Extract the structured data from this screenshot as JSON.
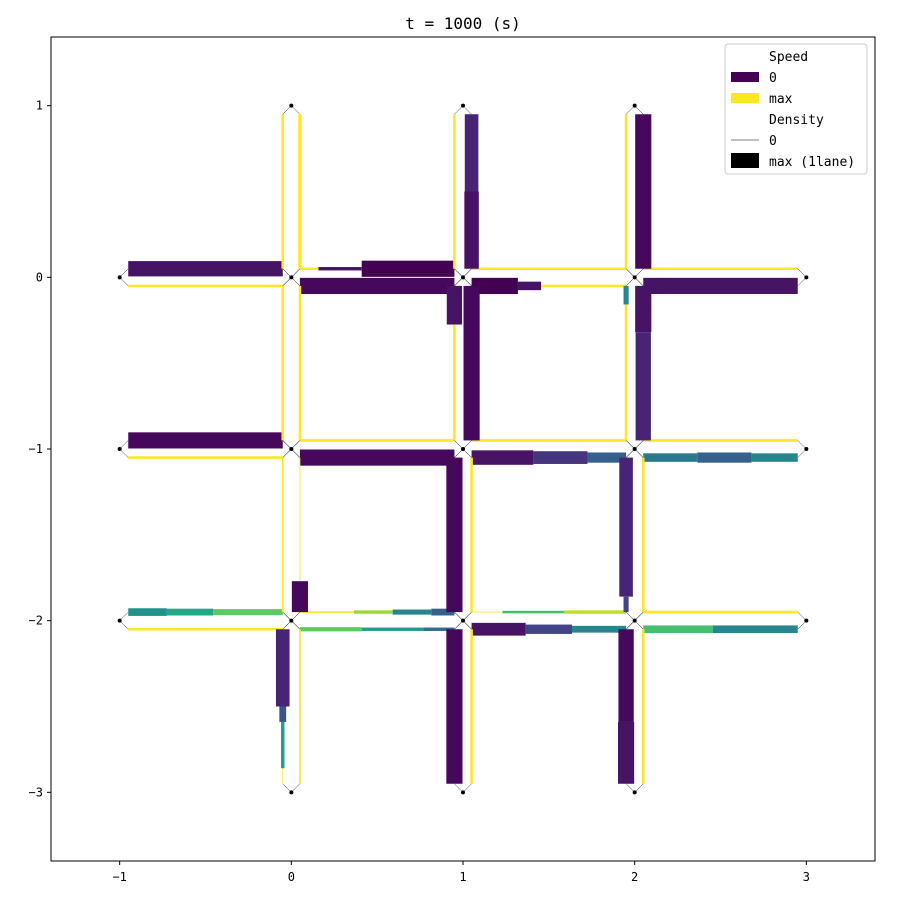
{
  "chart_data": {
    "type": "other",
    "title": "t =     1000 (s)",
    "xlim": [
      -1.4,
      3.4
    ],
    "ylim": [
      -3.4,
      1.4
    ],
    "x_ticks": [
      -1,
      0,
      1,
      2,
      3
    ],
    "y_ticks": [
      1,
      0,
      -1,
      -2,
      -3
    ],
    "x_tick_labels": [
      "−1",
      "0",
      "1",
      "2",
      "3"
    ],
    "y_tick_labels": [
      "1",
      "0",
      "−1",
      "−2",
      "−3"
    ],
    "grid": false,
    "legend": {
      "placement": "top-right",
      "speed_title": "Speed",
      "speed_zero": "0",
      "speed_max": "max",
      "density_title": "Density",
      "density_zero": "0",
      "density_max": "max (1lane)",
      "speed_zero_color": "#440154",
      "speed_max_color": "#fde725",
      "density_color": "#000000"
    },
    "nodes": [
      [
        0,
        1
      ],
      [
        1,
        1
      ],
      [
        2,
        1
      ],
      [
        -1,
        0
      ],
      [
        0,
        0
      ],
      [
        1,
        0
      ],
      [
        2,
        0
      ],
      [
        3,
        0
      ],
      [
        -1,
        -1
      ],
      [
        0,
        -1
      ],
      [
        1,
        -1
      ],
      [
        2,
        -1
      ],
      [
        3,
        -1
      ],
      [
        -1,
        -2
      ],
      [
        0,
        -2
      ],
      [
        1,
        -2
      ],
      [
        2,
        -2
      ],
      [
        3,
        -2
      ],
      [
        0,
        -3
      ],
      [
        1,
        -3
      ],
      [
        2,
        -3
      ]
    ],
    "links": [
      {
        "axis": "h",
        "y": 0.05,
        "x0": -0.95,
        "x1": -0.05,
        "segments": [
          {
            "t0": 0,
            "t1": 1,
            "speed": 0.05,
            "density": 0.9
          }
        ]
      },
      {
        "axis": "h",
        "y": -0.05,
        "x0": -0.05,
        "x1": -0.95,
        "segments": [
          {
            "t0": 0,
            "t1": 1,
            "speed": 1.0,
            "density": 0.0
          }
        ]
      },
      {
        "axis": "h",
        "y": 0.05,
        "x0": 0.95,
        "x1": 0.05,
        "segments": [
          {
            "t0": 0,
            "t1": 0.6,
            "speed": 0.0,
            "density": 0.95
          },
          {
            "t0": 0.6,
            "t1": 0.88,
            "speed": 0.05,
            "density": 0.2
          },
          {
            "t0": 0.88,
            "t1": 1.0,
            "speed": 1.0,
            "density": 0.0
          }
        ]
      },
      {
        "axis": "h",
        "y": -0.05,
        "x0": 0.05,
        "x1": 0.95,
        "segments": [
          {
            "t0": 0,
            "t1": 1,
            "speed": 0.02,
            "density": 0.95
          }
        ]
      },
      {
        "axis": "h",
        "y": 0.05,
        "x0": 1.95,
        "x1": 1.05,
        "segments": [
          {
            "t0": 0,
            "t1": 1,
            "speed": 1.0,
            "density": 0.0
          }
        ]
      },
      {
        "axis": "h",
        "y": -0.05,
        "x0": 1.05,
        "x1": 1.95,
        "segments": [
          {
            "t0": 0,
            "t1": 0.3,
            "speed": 0.0,
            "density": 0.95
          },
          {
            "t0": 0.3,
            "t1": 0.45,
            "speed": 0.05,
            "density": 0.5
          },
          {
            "t0": 0.45,
            "t1": 1.0,
            "speed": 1.0,
            "density": 0.0
          }
        ]
      },
      {
        "axis": "h",
        "y": 0.05,
        "x0": 2.95,
        "x1": 2.05,
        "segments": [
          {
            "t0": 0,
            "t1": 1,
            "speed": 1.0,
            "density": 0.0
          }
        ]
      },
      {
        "axis": "h",
        "y": -0.05,
        "x0": 2.05,
        "x1": 2.95,
        "segments": [
          {
            "t0": 0,
            "t1": 1,
            "speed": 0.05,
            "density": 0.95
          }
        ]
      },
      {
        "axis": "h",
        "y": -0.95,
        "x0": -0.95,
        "x1": -0.05,
        "segments": [
          {
            "t0": 0,
            "t1": 1,
            "speed": 0.02,
            "density": 0.95
          }
        ]
      },
      {
        "axis": "h",
        "y": -1.05,
        "x0": -0.05,
        "x1": -0.95,
        "segments": [
          {
            "t0": 0,
            "t1": 1,
            "speed": 1.0,
            "density": 0.0
          }
        ]
      },
      {
        "axis": "h",
        "y": -0.95,
        "x0": 0.95,
        "x1": 0.05,
        "segments": [
          {
            "t0": 0,
            "t1": 1,
            "speed": 1.0,
            "density": 0.0
          }
        ]
      },
      {
        "axis": "h",
        "y": -1.05,
        "x0": 0.05,
        "x1": 0.95,
        "segments": [
          {
            "t0": 0,
            "t1": 1,
            "speed": 0.02,
            "density": 0.95
          }
        ]
      },
      {
        "axis": "h",
        "y": -0.95,
        "x0": 1.95,
        "x1": 1.05,
        "segments": [
          {
            "t0": 0,
            "t1": 1,
            "speed": 1.0,
            "density": 0.0
          }
        ]
      },
      {
        "axis": "h",
        "y": -1.05,
        "x0": 1.05,
        "x1": 1.95,
        "segments": [
          {
            "t0": 0,
            "t1": 0.4,
            "speed": 0.05,
            "density": 0.85
          },
          {
            "t0": 0.4,
            "t1": 0.75,
            "speed": 0.15,
            "density": 0.75
          },
          {
            "t0": 0.75,
            "t1": 1.0,
            "speed": 0.3,
            "density": 0.6
          }
        ]
      },
      {
        "axis": "h",
        "y": -0.95,
        "x0": 2.95,
        "x1": 2.05,
        "segments": [
          {
            "t0": 0,
            "t1": 1,
            "speed": 1.0,
            "density": 0.0
          }
        ]
      },
      {
        "axis": "h",
        "y": -1.05,
        "x0": 2.05,
        "x1": 2.95,
        "segments": [
          {
            "t0": 0,
            "t1": 0.35,
            "speed": 0.4,
            "density": 0.5
          },
          {
            "t0": 0.35,
            "t1": 0.7,
            "speed": 0.3,
            "density": 0.6
          },
          {
            "t0": 0.7,
            "t1": 1.0,
            "speed": 0.45,
            "density": 0.5
          }
        ]
      },
      {
        "axis": "h",
        "y": -1.95,
        "x0": -0.95,
        "x1": -0.05,
        "segments": [
          {
            "t0": 0,
            "t1": 0.25,
            "speed": 0.5,
            "density": 0.45
          },
          {
            "t0": 0.25,
            "t1": 0.55,
            "speed": 0.6,
            "density": 0.4
          },
          {
            "t0": 0.55,
            "t1": 1.0,
            "speed": 0.75,
            "density": 0.35
          }
        ]
      },
      {
        "axis": "h",
        "y": -2.05,
        "x0": -0.05,
        "x1": -0.95,
        "segments": [
          {
            "t0": 0,
            "t1": 1,
            "speed": 1.0,
            "density": 0.15
          }
        ]
      },
      {
        "axis": "h",
        "y": -1.95,
        "x0": 0.95,
        "x1": 0.05,
        "segments": [
          {
            "t0": 0,
            "t1": 0.15,
            "speed": 0.3,
            "density": 0.4
          },
          {
            "t0": 0.15,
            "t1": 0.4,
            "speed": 0.45,
            "density": 0.3
          },
          {
            "t0": 0.4,
            "t1": 0.65,
            "speed": 0.85,
            "density": 0.2
          },
          {
            "t0": 0.65,
            "t1": 1.0,
            "speed": 1.0,
            "density": 0.1
          }
        ]
      },
      {
        "axis": "h",
        "y": -2.05,
        "x0": 0.05,
        "x1": 0.95,
        "segments": [
          {
            "t0": 0,
            "t1": 0.4,
            "speed": 0.75,
            "density": 0.25
          },
          {
            "t0": 0.4,
            "t1": 0.8,
            "speed": 0.55,
            "density": 0.2
          },
          {
            "t0": 0.8,
            "t1": 1.0,
            "speed": 0.35,
            "density": 0.2
          }
        ]
      },
      {
        "axis": "h",
        "y": -1.95,
        "x0": 1.95,
        "x1": 1.05,
        "segments": [
          {
            "t0": 0,
            "t1": 0.4,
            "speed": 0.9,
            "density": 0.2
          },
          {
            "t0": 0.4,
            "t1": 0.8,
            "speed": 0.7,
            "density": 0.15
          },
          {
            "t0": 0.8,
            "t1": 1.0,
            "speed": 1.0,
            "density": 0.05
          }
        ]
      },
      {
        "axis": "h",
        "y": -2.05,
        "x0": 1.05,
        "x1": 1.95,
        "segments": [
          {
            "t0": 0,
            "t1": 0.35,
            "speed": 0.05,
            "density": 0.75
          },
          {
            "t0": 0.35,
            "t1": 0.65,
            "speed": 0.2,
            "density": 0.55
          },
          {
            "t0": 0.65,
            "t1": 1.0,
            "speed": 0.45,
            "density": 0.4
          }
        ]
      },
      {
        "axis": "h",
        "y": -1.95,
        "x0": 2.95,
        "x1": 2.05,
        "segments": [
          {
            "t0": 0,
            "t1": 1,
            "speed": 1.0,
            "density": 0.0
          }
        ]
      },
      {
        "axis": "h",
        "y": -2.05,
        "x0": 2.05,
        "x1": 2.95,
        "segments": [
          {
            "t0": 0,
            "t1": 0.45,
            "speed": 0.7,
            "density": 0.45
          },
          {
            "t0": 0.45,
            "t1": 1.0,
            "speed": 0.45,
            "density": 0.45
          }
        ]
      },
      {
        "axis": "v",
        "x": -0.05,
        "y0": 0.95,
        "y1": 0.05,
        "segments": [
          {
            "t0": 0,
            "t1": 1,
            "speed": 1.0,
            "density": 0.0
          }
        ]
      },
      {
        "axis": "v",
        "x": 0.05,
        "y0": 0.05,
        "y1": 0.95,
        "segments": [
          {
            "t0": 0,
            "t1": 1,
            "speed": 1.0,
            "density": 0.2
          }
        ]
      },
      {
        "axis": "v",
        "x": 0.95,
        "y0": 0.95,
        "y1": 0.05,
        "segments": [
          {
            "t0": 0,
            "t1": 1,
            "speed": 1.0,
            "density": 0.0
          }
        ]
      },
      {
        "axis": "v",
        "x": 1.05,
        "y0": 0.05,
        "y1": 0.95,
        "segments": [
          {
            "t0": 0,
            "t1": 0.5,
            "speed": 0.05,
            "density": 0.85
          },
          {
            "t0": 0.5,
            "t1": 1.0,
            "speed": 0.1,
            "density": 0.8
          }
        ]
      },
      {
        "axis": "v",
        "x": 1.95,
        "y0": 0.95,
        "y1": 0.05,
        "segments": [
          {
            "t0": 0,
            "t1": 1,
            "speed": 1.0,
            "density": 0.0
          }
        ]
      },
      {
        "axis": "v",
        "x": 2.05,
        "y0": 0.05,
        "y1": 0.95,
        "segments": [
          {
            "t0": 0,
            "t1": 1,
            "speed": 0.02,
            "density": 0.95
          }
        ]
      },
      {
        "axis": "v",
        "x": -0.05,
        "y0": -0.05,
        "y1": -0.95,
        "segments": [
          {
            "t0": 0,
            "t1": 1,
            "speed": 1.0,
            "density": 0.0
          }
        ]
      },
      {
        "axis": "v",
        "x": 0.05,
        "y0": -0.95,
        "y1": -0.05,
        "segments": [
          {
            "t0": 0,
            "t1": 1,
            "speed": 1.0,
            "density": 0.15
          }
        ]
      },
      {
        "axis": "v",
        "x": 0.95,
        "y0": -0.05,
        "y1": -0.95,
        "segments": [
          {
            "t0": 0,
            "t1": 0.25,
            "speed": 0.05,
            "density": 0.9
          },
          {
            "t0": 0.25,
            "t1": 1.0,
            "speed": 1.0,
            "density": 0.0
          }
        ]
      },
      {
        "axis": "v",
        "x": 1.05,
        "y0": -0.95,
        "y1": -0.05,
        "segments": [
          {
            "t0": 0,
            "t1": 1,
            "speed": 0.02,
            "density": 0.95
          }
        ]
      },
      {
        "axis": "v",
        "x": 1.95,
        "y0": -0.05,
        "y1": -0.95,
        "segments": [
          {
            "t0": 0,
            "t1": 0.12,
            "speed": 0.45,
            "density": 0.3
          },
          {
            "t0": 0.12,
            "t1": 1.0,
            "speed": 1.0,
            "density": 0.0
          }
        ]
      },
      {
        "axis": "v",
        "x": 2.05,
        "y0": -0.95,
        "y1": -0.05,
        "segments": [
          {
            "t0": 0,
            "t1": 0.7,
            "speed": 0.1,
            "density": 0.9
          },
          {
            "t0": 0.7,
            "t1": 1.0,
            "speed": 0.05,
            "density": 0.95
          }
        ]
      },
      {
        "axis": "v",
        "x": -0.05,
        "y0": -1.05,
        "y1": -1.95,
        "segments": [
          {
            "t0": 0,
            "t1": 1,
            "speed": 1.0,
            "density": 0.1
          }
        ]
      },
      {
        "axis": "v",
        "x": 0.05,
        "y0": -1.95,
        "y1": -1.05,
        "segments": [
          {
            "t0": 0,
            "t1": 0.2,
            "speed": 0.02,
            "density": 0.95
          },
          {
            "t0": 0.2,
            "t1": 1.0,
            "speed": 1.0,
            "density": 0.05
          }
        ]
      },
      {
        "axis": "v",
        "x": 0.95,
        "y0": -1.05,
        "y1": -1.95,
        "segments": [
          {
            "t0": 0,
            "t1": 1,
            "speed": 0.02,
            "density": 0.95
          }
        ]
      },
      {
        "axis": "v",
        "x": 1.05,
        "y0": -1.95,
        "y1": -1.05,
        "segments": [
          {
            "t0": 0,
            "t1": 1,
            "speed": 1.0,
            "density": 0.0
          }
        ]
      },
      {
        "axis": "v",
        "x": 1.95,
        "y0": -1.05,
        "y1": -1.95,
        "segments": [
          {
            "t0": 0,
            "t1": 0.9,
            "speed": 0.1,
            "density": 0.8
          },
          {
            "t0": 0.9,
            "t1": 1.0,
            "speed": 0.2,
            "density": 0.3
          }
        ]
      },
      {
        "axis": "v",
        "x": 2.05,
        "y0": -1.95,
        "y1": -1.05,
        "segments": [
          {
            "t0": 0,
            "t1": 1,
            "speed": 1.0,
            "density": 0.0
          }
        ]
      },
      {
        "axis": "v",
        "x": -0.05,
        "y0": -2.05,
        "y1": -2.95,
        "segments": [
          {
            "t0": 0,
            "t1": 0.5,
            "speed": 0.1,
            "density": 0.8
          },
          {
            "t0": 0.5,
            "t1": 0.6,
            "speed": 0.25,
            "density": 0.4
          },
          {
            "t0": 0.6,
            "t1": 0.9,
            "speed": 0.55,
            "density": 0.2
          },
          {
            "t0": 0.9,
            "t1": 1.0,
            "speed": 1.0,
            "density": 0.05
          }
        ]
      },
      {
        "axis": "v",
        "x": 0.05,
        "y0": -2.95,
        "y1": -2.05,
        "segments": [
          {
            "t0": 0,
            "t1": 1,
            "speed": 1.0,
            "density": 0.1
          }
        ]
      },
      {
        "axis": "v",
        "x": 0.95,
        "y0": -2.05,
        "y1": -2.95,
        "segments": [
          {
            "t0": 0,
            "t1": 1,
            "speed": 0.02,
            "density": 0.95
          }
        ]
      },
      {
        "axis": "v",
        "x": 1.05,
        "y0": -2.95,
        "y1": -2.05,
        "segments": [
          {
            "t0": 0,
            "t1": 1,
            "speed": 1.0,
            "density": 0.0
          }
        ]
      },
      {
        "axis": "v",
        "x": 1.95,
        "y0": -2.05,
        "y1": -2.95,
        "segments": [
          {
            "t0": 0,
            "t1": 0.6,
            "speed": 0.02,
            "density": 0.9
          },
          {
            "t0": 0.6,
            "t1": 1.0,
            "speed": 0.05,
            "density": 0.95
          }
        ]
      },
      {
        "axis": "v",
        "x": 2.05,
        "y0": -2.95,
        "y1": -2.05,
        "segments": [
          {
            "t0": 0,
            "t1": 1,
            "speed": 1.0,
            "density": 0.15
          }
        ]
      }
    ]
  }
}
